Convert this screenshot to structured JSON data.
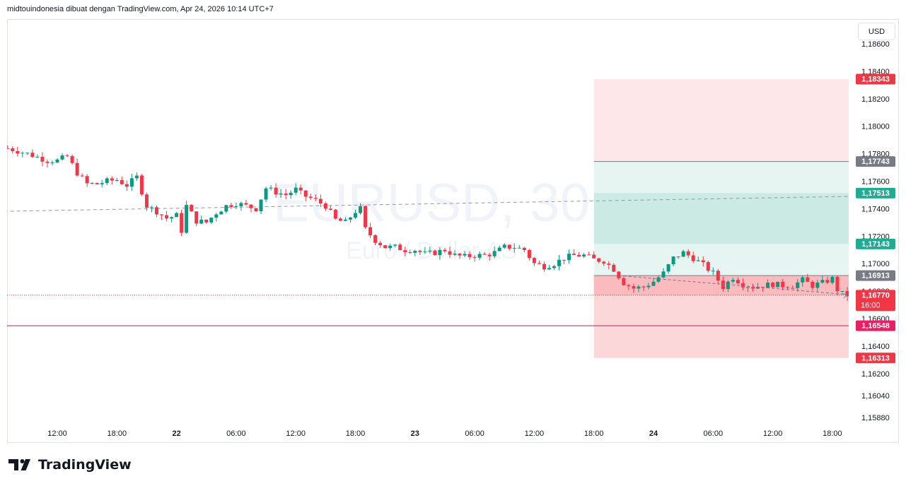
{
  "header": {
    "attribution": "midtouindonesia dibuat dengan TradingView.com, Apr 24, 2026 10:14 UTC+7"
  },
  "currency_button": "USD",
  "watermark": {
    "symbol": "EURUSD, 30",
    "name": "Euro / Dollar AS"
  },
  "footer": {
    "brand": "TradingView"
  },
  "colors": {
    "up": "#089981",
    "down": "#f23645",
    "grid": "#e0e3eb",
    "magenta": "#c2185b",
    "target": "#22ab94"
  },
  "chart_data": {
    "type": "candlestick",
    "symbol": "EURUSD",
    "interval": "30",
    "y_range": [
      1.1588,
      1.186
    ],
    "y_ticks": [
      "1,18600",
      "1,18400",
      "1,18200",
      "1,18000",
      "1,17800",
      "1,17600",
      "1,17400",
      "1,17200",
      "1,17000",
      "1,16800",
      "1,16600",
      "1,16400",
      "1,16200",
      "1,16040",
      "1,15880"
    ],
    "y_tick_values": [
      1.186,
      1.184,
      1.182,
      1.18,
      1.178,
      1.176,
      1.174,
      1.172,
      1.17,
      1.168,
      1.166,
      1.164,
      1.162,
      1.1604,
      1.1588
    ],
    "x_ticks": [
      {
        "label": "12:00",
        "h": 0
      },
      {
        "label": "18:00",
        "h": 6
      },
      {
        "label": "22",
        "h": 12,
        "bold": true
      },
      {
        "label": "06:00",
        "h": 18
      },
      {
        "label": "12:00",
        "h": 24
      },
      {
        "label": "18:00",
        "h": 30
      },
      {
        "label": "23",
        "h": 36,
        "bold": true
      },
      {
        "label": "06:00",
        "h": 42
      },
      {
        "label": "12:00",
        "h": 48
      },
      {
        "label": "18:00",
        "h": 54
      },
      {
        "label": "24",
        "h": 60,
        "bold": true
      },
      {
        "label": "06:00",
        "h": 66
      },
      {
        "label": "12:00",
        "h": 72
      },
      {
        "label": "18:00",
        "h": 78
      }
    ],
    "path": [
      [
        -5,
        1.1784
      ],
      [
        -3,
        1.178
      ],
      [
        -1,
        1.1775
      ],
      [
        0,
        1.1775
      ],
      [
        1,
        1.1778
      ],
      [
        2,
        1.1766
      ],
      [
        3,
        1.1758
      ],
      [
        4,
        1.1758
      ],
      [
        5,
        1.176
      ],
      [
        6,
        1.1761
      ],
      [
        7,
        1.1757
      ],
      [
        8,
        1.1763
      ],
      [
        9,
        1.1742
      ],
      [
        10,
        1.1738
      ],
      [
        11,
        1.1733
      ],
      [
        12,
        1.1735
      ],
      [
        12.5,
        1.1724
      ],
      [
        13,
        1.1742
      ],
      [
        14,
        1.1731
      ],
      [
        15,
        1.173
      ],
      [
        16,
        1.1737
      ],
      [
        17,
        1.1742
      ],
      [
        18,
        1.1744
      ],
      [
        19,
        1.1742
      ],
      [
        19.5,
        1.1741
      ],
      [
        20,
        1.174
      ],
      [
        21,
        1.1755
      ],
      [
        22,
        1.1752
      ],
      [
        23,
        1.175
      ],
      [
        24,
        1.1754
      ],
      [
        24.5,
        1.1751
      ],
      [
        25,
        1.1749
      ],
      [
        26,
        1.1746
      ],
      [
        27,
        1.1742
      ],
      [
        28,
        1.1732
      ],
      [
        29,
        1.173
      ],
      [
        30,
        1.1738
      ],
      [
        30.5,
        1.174
      ],
      [
        31,
        1.1725
      ],
      [
        32,
        1.1717
      ],
      [
        33,
        1.1712
      ],
      [
        34,
        1.1712
      ],
      [
        35,
        1.171
      ],
      [
        36,
        1.171
      ],
      [
        37,
        1.1707
      ],
      [
        38,
        1.1708
      ],
      [
        39,
        1.171
      ],
      [
        40,
        1.1706
      ],
      [
        41,
        1.1705
      ],
      [
        42,
        1.1706
      ],
      [
        43,
        1.1706
      ],
      [
        44,
        1.1708
      ],
      [
        45,
        1.1712
      ],
      [
        46,
        1.1712
      ],
      [
        47,
        1.171
      ],
      [
        48,
        1.17
      ],
      [
        49,
        1.1698
      ],
      [
        50,
        1.17
      ],
      [
        51,
        1.1704
      ],
      [
        52,
        1.1706
      ],
      [
        53,
        1.1706
      ],
      [
        54,
        1.1703
      ],
      [
        55,
        1.1702
      ],
      [
        56,
        1.1696
      ],
      [
        57,
        1.1686
      ],
      [
        58,
        1.1682
      ],
      [
        59,
        1.1683
      ],
      [
        60,
        1.1687
      ],
      [
        61,
        1.1693
      ],
      [
        62,
        1.1704
      ],
      [
        63,
        1.1708
      ],
      [
        64,
        1.1704
      ],
      [
        65,
        1.1699
      ],
      [
        66,
        1.1693
      ],
      [
        67,
        1.1683
      ],
      [
        68,
        1.169
      ],
      [
        69,
        1.1685
      ],
      [
        70,
        1.1683
      ],
      [
        71,
        1.1684
      ],
      [
        72,
        1.1685
      ],
      [
        73,
        1.1684
      ],
      [
        74,
        1.1684
      ],
      [
        75,
        1.1688
      ],
      [
        76,
        1.1684
      ],
      [
        77,
        1.1686
      ],
      [
        78,
        1.1689
      ],
      [
        78.5,
        1.1681
      ],
      [
        79,
        1.1678
      ],
      [
        79.5,
        1.1677
      ]
    ],
    "price_labels": [
      {
        "text": "1,18343",
        "value": 1.18343,
        "color": "#f23645"
      },
      {
        "text": "1,17743",
        "value": 1.17743,
        "color": "#787b86"
      },
      {
        "text": "1,17513",
        "value": 1.17513,
        "color": "#22ab94"
      },
      {
        "text": "1,17143",
        "value": 1.17143,
        "color": "#22ab94"
      },
      {
        "text": "1,16913",
        "value": 1.16913,
        "color": "#787b86"
      },
      {
        "text": "1,16770",
        "sub": "16:00",
        "value": 1.1677,
        "color": "#f23645"
      },
      {
        "text": "1,16548",
        "value": 1.16548,
        "color": "#e91e63"
      },
      {
        "text": "1,16313",
        "value": 1.16313,
        "color": "#f23645"
      }
    ],
    "horizontal_lines": [
      {
        "value": 1.16548,
        "color": "#c2185b",
        "style": "solid"
      },
      {
        "value": 1.1677,
        "color": "#f23645",
        "style": "dotted"
      }
    ],
    "trend_line": {
      "from": [
        -6,
        1.1738
      ],
      "to": [
        96,
        1.1751
      ]
    },
    "position_box": {
      "x_from": 54,
      "x_to": 92,
      "stop": 1.18343,
      "entry_high": 1.17743,
      "target_high": 1.17513,
      "target_low": 1.17143,
      "entry": 1.16913,
      "low": 1.16313
    },
    "projection_arrow": {
      "from": [
        57,
        1.1691
      ],
      "to": [
        79.5,
        1.16775
      ]
    }
  }
}
